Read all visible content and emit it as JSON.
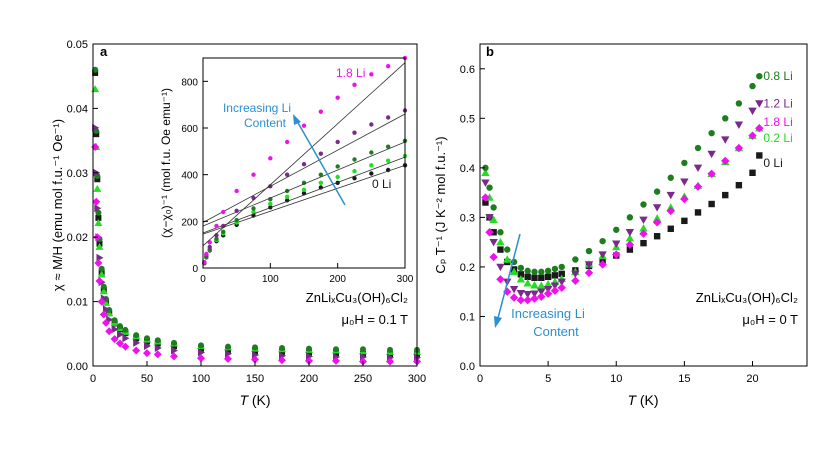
{
  "chart_data": [
    {
      "panel": "a",
      "type": "scatter",
      "panel_label": "a",
      "xlabel_italic": "T",
      "xlabel_unit": " (K)",
      "ylabel": "χ ≈ M/H (emu mol f.u.⁻¹ Oe⁻¹)",
      "xlim": [
        0,
        300
      ],
      "ylim": [
        0,
        0.05
      ],
      "xticks": [
        "0",
        "50",
        "100",
        "150",
        "200",
        "250",
        "300"
      ],
      "yticks": [
        "0.00",
        "0.01",
        "0.02",
        "0.03",
        "0.04",
        "0.05"
      ],
      "annotation_formula": "ZnLiₓCu₃(OH)₆Cl₂",
      "annotation_field": "μ₀H = 0.1 T",
      "x": [
        2,
        3,
        4,
        5,
        6,
        8,
        10,
        12,
        15,
        20,
        25,
        30,
        40,
        50,
        60,
        75,
        100,
        125,
        150,
        175,
        200,
        225,
        250,
        275,
        300
      ],
      "series": [
        {
          "name": "0 Li",
          "color": "#1a1a1a",
          "marker": "square",
          "values": [
            0.0455,
            0.036,
            0.029,
            0.023,
            0.019,
            0.0145,
            0.0118,
            0.0099,
            0.0082,
            0.0066,
            0.0057,
            0.0051,
            0.0043,
            0.0038,
            0.0035,
            0.0031,
            0.0027,
            0.0025,
            0.0023,
            0.0022,
            0.0021,
            0.002,
            0.0019,
            0.0018,
            0.0018
          ]
        },
        {
          "name": "0.2 Li",
          "color": "#22dd22",
          "marker": "triangle-up",
          "values": [
            0.043,
            0.034,
            0.0275,
            0.0222,
            0.0185,
            0.0142,
            0.0116,
            0.0098,
            0.0082,
            0.0067,
            0.0059,
            0.0053,
            0.0046,
            0.0041,
            0.0038,
            0.0035,
            0.0031,
            0.0029,
            0.0027,
            0.0026,
            0.0025,
            0.0024,
            0.0023,
            0.0022,
            0.0022
          ]
        },
        {
          "name": "0.8 Li",
          "color": "#1e7d1e",
          "marker": "circle",
          "values": [
            0.046,
            0.0365,
            0.0295,
            0.0238,
            0.0197,
            0.0151,
            0.0123,
            0.0104,
            0.0087,
            0.0071,
            0.0062,
            0.0056,
            0.0048,
            0.0043,
            0.004,
            0.0036,
            0.0032,
            0.003,
            0.0029,
            0.0028,
            0.0027,
            0.0026,
            0.0026,
            0.0025,
            0.0025
          ]
        },
        {
          "name": "1.2 Li",
          "color": "#7a2a8a",
          "marker": "triangle-right",
          "values": [
            0.037,
            0.03,
            0.0245,
            0.02,
            0.0168,
            0.013,
            0.0105,
            0.0088,
            0.0072,
            0.0057,
            0.0049,
            0.0043,
            0.0036,
            0.0031,
            0.0028,
            0.0024,
            0.0021,
            0.0019,
            0.0017,
            0.0016,
            0.0015,
            0.0014,
            0.0014,
            0.0013,
            0.0013
          ]
        },
        {
          "name": "1.8 Li",
          "color": "#ee11ee",
          "marker": "diamond",
          "values": [
            0.034,
            0.0255,
            0.02,
            0.016,
            0.0132,
            0.01,
            0.008,
            0.0067,
            0.0054,
            0.0042,
            0.0035,
            0.003,
            0.0024,
            0.002,
            0.0018,
            0.0015,
            0.0012,
            0.0011,
            0.001,
            0.0009,
            0.0008,
            0.0008,
            0.0007,
            0.0007,
            0.0007
          ]
        }
      ]
    },
    {
      "panel": "a-inset",
      "type": "scatter",
      "ylabel": "(χ−χ₀)⁻¹ (mol f.u. Oe emu⁻¹)",
      "xlim": [
        0,
        300
      ],
      "ylim": [
        0,
        900
      ],
      "xticks": [
        "0",
        "100",
        "200",
        "300"
      ],
      "yticks": [
        "0",
        "200",
        "400",
        "600",
        "800"
      ],
      "annotation": "Increasing Li Content",
      "labels": [
        "1.8 Li",
        "0 Li"
      ],
      "x": [
        2,
        5,
        10,
        20,
        30,
        50,
        75,
        100,
        125,
        150,
        175,
        200,
        225,
        250,
        275,
        300
      ],
      "fit_x": [
        0,
        300
      ],
      "series": [
        {
          "name": "0 Li",
          "color": "#1a1a1a",
          "values": [
            20,
            45,
            75,
            115,
            140,
            185,
            225,
            260,
            290,
            320,
            345,
            365,
            385,
            405,
            420,
            440
          ],
          "fit": [
            145,
            440
          ]
        },
        {
          "name": "0.2 Li",
          "color": "#22dd22",
          "values": [
            20,
            45,
            78,
            120,
            148,
            195,
            240,
            275,
            305,
            335,
            365,
            390,
            415,
            440,
            460,
            480
          ],
          "fit": [
            150,
            475
          ]
        },
        {
          "name": "0.8 Li",
          "color": "#1e7d1e",
          "values": [
            20,
            48,
            80,
            125,
            155,
            205,
            255,
            295,
            330,
            365,
            400,
            435,
            465,
            495,
            520,
            545
          ],
          "fit": [
            180,
            540
          ]
        },
        {
          "name": "1.2 Li",
          "color": "#7a2a8a",
          "values": [
            25,
            55,
            90,
            140,
            180,
            245,
            300,
            350,
            400,
            445,
            490,
            540,
            580,
            615,
            645,
            675
          ],
          "fit": [
            195,
            660
          ]
        },
        {
          "name": "1.8 Li",
          "color": "#ee11ee",
          "values": [
            25,
            60,
            110,
            180,
            240,
            330,
            400,
            470,
            540,
            610,
            670,
            730,
            785,
            830,
            865,
            900
          ],
          "fit": [
            95,
            880
          ]
        }
      ]
    },
    {
      "panel": "b",
      "type": "scatter",
      "panel_label": "b",
      "xlabel_italic": "T",
      "xlabel_unit": " (K)",
      "ylabel": "Cₚ T⁻¹ (J K⁻² mol f.u.⁻¹)",
      "xlim": [
        0,
        24
      ],
      "ylim": [
        0,
        0.65
      ],
      "xticks": [
        "0",
        "5",
        "10",
        "15",
        "20"
      ],
      "xtick_values": [
        0,
        5,
        10,
        15,
        20
      ],
      "yticks": [
        "0.0",
        "0.1",
        "0.2",
        "0.3",
        "0.4",
        "0.5",
        "0.6"
      ],
      "annotation": "Increasing Li Content",
      "annotation_formula": "ZnLiₓCu₃(OH)₆Cl₂",
      "annotation_field": "μ₀H = 0 T",
      "x": [
        0.4,
        0.7,
        1.0,
        1.5,
        2.0,
        2.5,
        3.0,
        3.5,
        4.0,
        4.5,
        5.0,
        5.5,
        6.0,
        7.0,
        8.0,
        9.0,
        10.0,
        11.0,
        12.0,
        13.0,
        14.0,
        15.0,
        16.0,
        17.0,
        18.0,
        19.0,
        20.0,
        20.5
      ],
      "series": [
        {
          "name": "0 Li",
          "color": "#1a1a1a",
          "marker": "square",
          "values": [
            0.33,
            0.3,
            0.27,
            0.235,
            0.21,
            0.195,
            0.185,
            0.18,
            0.178,
            0.178,
            0.18,
            0.183,
            0.186,
            0.193,
            0.202,
            0.212,
            0.223,
            0.235,
            0.248,
            0.262,
            0.277,
            0.293,
            0.31,
            0.327,
            0.345,
            0.365,
            0.39,
            0.425
          ]
        },
        {
          "name": "0.2 Li",
          "color": "#22dd22",
          "marker": "triangle-up",
          "values": [
            0.39,
            0.34,
            0.295,
            0.25,
            0.215,
            0.19,
            0.175,
            0.167,
            0.163,
            0.162,
            0.165,
            0.17,
            0.176,
            0.19,
            0.205,
            0.222,
            0.24,
            0.258,
            0.278,
            0.298,
            0.32,
            0.342,
            0.364,
            0.388,
            0.412,
            0.44,
            0.465,
            0.48
          ]
        },
        {
          "name": "0.8 Li",
          "color": "#1e7d1e",
          "marker": "circle",
          "values": [
            0.4,
            0.36,
            0.32,
            0.27,
            0.235,
            0.21,
            0.198,
            0.192,
            0.19,
            0.19,
            0.192,
            0.196,
            0.2,
            0.215,
            0.232,
            0.252,
            0.275,
            0.3,
            0.326,
            0.352,
            0.38,
            0.41,
            0.44,
            0.47,
            0.5,
            0.53,
            0.565,
            0.585
          ]
        },
        {
          "name": "1.2 Li",
          "color": "#7a2a8a",
          "marker": "triangle-down",
          "values": [
            0.37,
            0.3,
            0.25,
            0.2,
            0.17,
            0.155,
            0.147,
            0.145,
            0.146,
            0.15,
            0.155,
            0.162,
            0.17,
            0.186,
            0.205,
            0.225,
            0.247,
            0.27,
            0.295,
            0.32,
            0.345,
            0.372,
            0.4,
            0.428,
            0.457,
            0.487,
            0.515,
            0.53
          ]
        },
        {
          "name": "1.8 Li",
          "color": "#ee11ee",
          "marker": "diamond",
          "values": [
            0.34,
            0.27,
            0.22,
            0.175,
            0.15,
            0.138,
            0.133,
            0.133,
            0.136,
            0.14,
            0.146,
            0.152,
            0.158,
            0.172,
            0.188,
            0.205,
            0.225,
            0.245,
            0.267,
            0.29,
            0.313,
            0.337,
            0.362,
            0.388,
            0.414,
            0.44,
            0.465,
            0.48
          ]
        }
      ],
      "legend_labels": [
        {
          "name": "0.8 Li",
          "color": "#1e7d1e",
          "value": 0.585
        },
        {
          "name": "1.2 Li",
          "color": "#7a2a8a",
          "value": 0.53
        },
        {
          "name": "1.8 Li",
          "color": "#ee11ee",
          "value": 0.493
        },
        {
          "name": "0.2 Li",
          "color": "#22dd22",
          "value": 0.46
        },
        {
          "name": "0 Li",
          "color": "#1a1a1a",
          "value": 0.41
        }
      ]
    }
  ]
}
